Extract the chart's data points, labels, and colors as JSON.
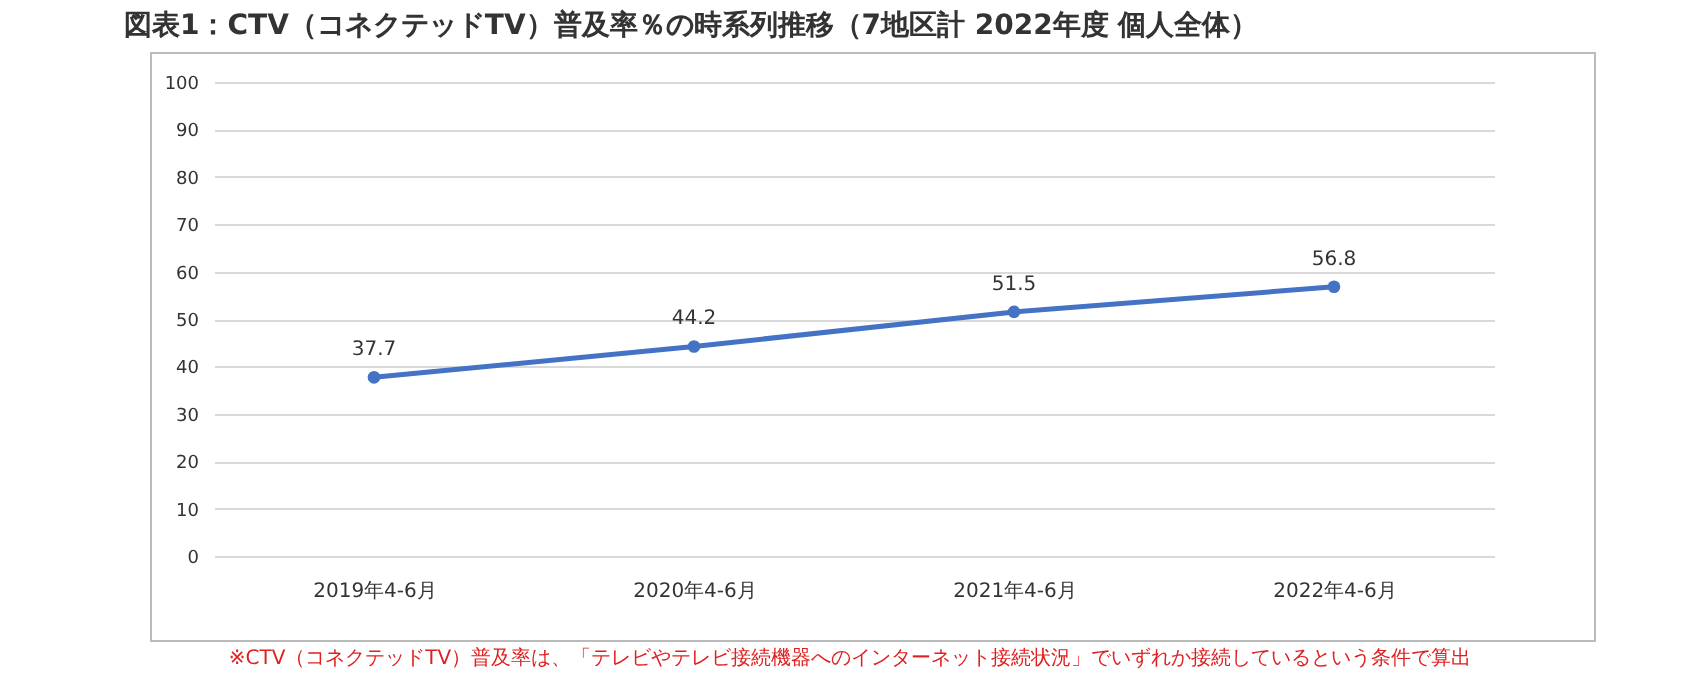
{
  "chart_data": {
    "type": "line",
    "title": "図表1：CTV（コネクテッドTV）普及率％の時系列推移（7地区計 2022年度 個人全体）",
    "categories": [
      "2019年4-6月",
      "2020年4-6月",
      "2021年4-6月",
      "2022年4-6月"
    ],
    "series": [
      {
        "color": "#4472c4",
        "values": [
          37.7,
          44.2,
          51.5,
          56.8
        ]
      }
    ],
    "ylim": [
      0,
      100
    ],
    "yticks": [
      0,
      10,
      20,
      30,
      40,
      50,
      60,
      70,
      80,
      90,
      100
    ],
    "grid": "y",
    "marker": "circle",
    "line_style": "solid",
    "data_labels": true,
    "legend": false,
    "annotations": [
      "※CTV（コネクテッドTV）普及率は、「テレビやテレビ接続機器へのインターネット接続状況」でいずれか接続しているという条件で算出"
    ]
  }
}
